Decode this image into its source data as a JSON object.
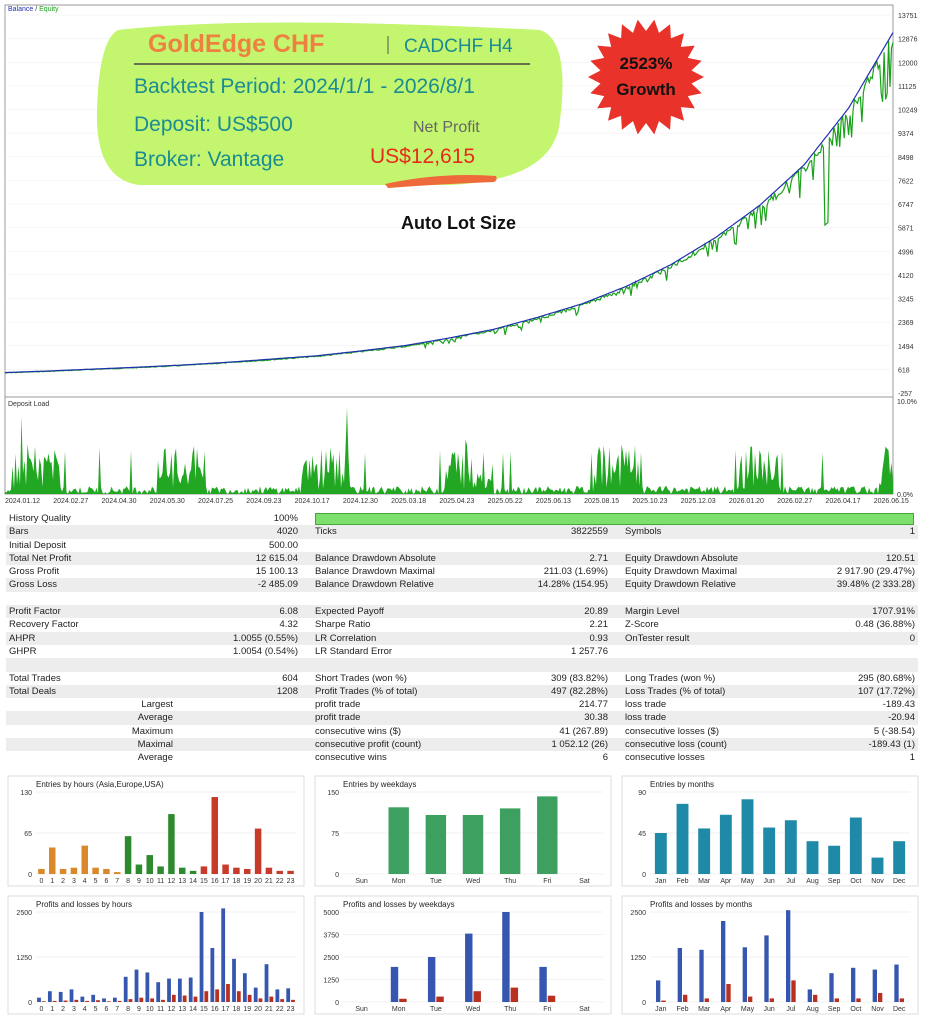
{
  "top_chart": {
    "legend_balance": "Balance",
    "legend_sep": " / ",
    "legend_equity": "Equity",
    "yticks": [
      "13751",
      "12876",
      "12000",
      "11125",
      "10249",
      "9374",
      "8498",
      "7622",
      "6747",
      "5871",
      "4996",
      "4120",
      "3245",
      "2369",
      "1494",
      "618",
      "-257"
    ],
    "ymin": -257,
    "ymax": 13751,
    "balance_curve": [
      [
        0,
        500
      ],
      [
        0.05,
        560
      ],
      [
        0.1,
        630
      ],
      [
        0.15,
        700
      ],
      [
        0.2,
        780
      ],
      [
        0.25,
        880
      ],
      [
        0.3,
        1000
      ],
      [
        0.35,
        1120
      ],
      [
        0.4,
        1300
      ],
      [
        0.45,
        1500
      ],
      [
        0.5,
        1780
      ],
      [
        0.55,
        2100
      ],
      [
        0.6,
        2550
      ],
      [
        0.65,
        3050
      ],
      [
        0.7,
        3700
      ],
      [
        0.75,
        4500
      ],
      [
        0.8,
        5500
      ],
      [
        0.85,
        6700
      ],
      [
        0.9,
        8200
      ],
      [
        0.95,
        10300
      ],
      [
        1,
        13100
      ]
    ],
    "colors": {
      "balance": "#1f2fb0",
      "equity": "#19a119"
    }
  },
  "promo": {
    "title": "GoldEdge CHF",
    "symbol": "CADCHF H4",
    "period": "Backtest Period: 2024/1/1 - 2026/8/1",
    "deposit": "Deposit: US$500",
    "broker": "Broker: Vantage",
    "net_profit_label": "Net Profit",
    "net_profit_value": "US$12,615",
    "growth_pct": "2523%",
    "growth_word": "Growth",
    "lot_label": "Auto Lot Size"
  },
  "load_chart": {
    "title": "Deposit Load",
    "ytop": "10.0%",
    "ybottom": "0.0%",
    "dates": [
      "2024.01.12",
      "2024.02.27",
      "2024.04.30",
      "2024.05.30",
      "2024.07.25",
      "2024.09.23",
      "2024.10.17",
      "2024.12.30",
      "2025.03.18",
      "2025.04.23",
      "2025.05.22",
      "2025.06.13",
      "2025.08.15",
      "2025.10.23",
      "2025.12.03",
      "2026.01.20",
      "2026.02.27",
      "2026.04.17",
      "2026.06.15"
    ]
  },
  "stats": {
    "history_quality_label": "History Quality",
    "history_quality": "100%",
    "rows": [
      [
        "Bars",
        "4020",
        "Ticks",
        "3822559",
        "Symbols",
        "1"
      ],
      [
        "Initial Deposit",
        "500.00",
        "",
        "",
        "",
        ""
      ],
      [
        "Total Net Profit",
        "12 615.04",
        "Balance Drawdown Absolute",
        "2.71",
        "Equity Drawdown Absolute",
        "120.51"
      ],
      [
        "Gross Profit",
        "15 100.13",
        "Balance Drawdown Maximal",
        "211.03 (1.69%)",
        "Equity Drawdown Maximal",
        "2 917.90 (29.47%)"
      ],
      [
        "Gross Loss",
        "-2 485.09",
        "Balance Drawdown Relative",
        "14.28% (154.95)",
        "Equity Drawdown Relative",
        "39.48% (2 333.28)"
      ],
      [
        "",
        "",
        "",
        "",
        "",
        ""
      ],
      [
        "Profit Factor",
        "6.08",
        "Expected Payoff",
        "20.89",
        "Margin Level",
        "1707.91%"
      ],
      [
        "Recovery Factor",
        "4.32",
        "Sharpe Ratio",
        "2.21",
        "Z-Score",
        "0.48 (36.88%)"
      ],
      [
        "AHPR",
        "1.0055 (0.55%)",
        "LR Correlation",
        "0.93",
        "OnTester result",
        "0"
      ],
      [
        "GHPR",
        "1.0054 (0.54%)",
        "LR Standard Error",
        "1 257.76",
        "",
        ""
      ],
      [
        "",
        "",
        "",
        "",
        "",
        ""
      ],
      [
        "Total Trades",
        "604",
        "Short Trades (won %)",
        "309 (83.82%)",
        "Long Trades (won %)",
        "295 (80.68%)"
      ],
      [
        "Total Deals",
        "1208",
        "Profit Trades (% of total)",
        "497 (82.28%)",
        "Loss Trades (% of total)",
        "107 (17.72%)"
      ],
      [
        "Largest",
        "",
        "profit trade",
        "214.77",
        "loss trade",
        "-189.43"
      ],
      [
        "Average",
        "",
        "profit trade",
        "30.38",
        "loss trade",
        "-20.94"
      ],
      [
        "Maximum",
        "",
        "consecutive wins ($)",
        "41 (267.89)",
        "consecutive losses ($)",
        "5 (-38.54)"
      ],
      [
        "Maximal",
        "",
        "consecutive profit (count)",
        "1 052.12 (26)",
        "consecutive loss (count)",
        "-189.43 (1)"
      ],
      [
        "Average",
        "",
        "consecutive wins",
        "6",
        "consecutive losses",
        "1"
      ]
    ]
  },
  "chart_data": [
    {
      "type": "bar",
      "title": "Entries by hours (Asia,Europe,USA)",
      "categories": [
        "0",
        "1",
        "2",
        "3",
        "4",
        "5",
        "6",
        "7",
        "8",
        "9",
        "10",
        "11",
        "12",
        "13",
        "14",
        "15",
        "16",
        "17",
        "18",
        "19",
        "20",
        "21",
        "22",
        "23"
      ],
      "values": [
        8,
        42,
        8,
        10,
        45,
        10,
        8,
        3,
        60,
        15,
        30,
        12,
        95,
        10,
        5,
        12,
        122,
        15,
        10,
        8,
        72,
        10,
        5,
        5
      ],
      "ylim": [
        0,
        130
      ],
      "yticks": [
        "130",
        "65",
        "0"
      ]
    },
    {
      "type": "bar",
      "title": "Entries by weekdays",
      "categories": [
        "Sun",
        "Mon",
        "Tue",
        "Wed",
        "Thu",
        "Fri",
        "Sat"
      ],
      "values": [
        0,
        122,
        108,
        108,
        120,
        142,
        0
      ],
      "ylim": [
        0,
        150
      ],
      "yticks": [
        "150",
        "75",
        "0"
      ]
    },
    {
      "type": "bar",
      "title": "Entries by months",
      "categories": [
        "Jan",
        "Feb",
        "Mar",
        "Apr",
        "May",
        "Jun",
        "Jul",
        "Aug",
        "Sep",
        "Oct",
        "Nov",
        "Dec"
      ],
      "values": [
        45,
        77,
        50,
        65,
        82,
        51,
        59,
        36,
        31,
        62,
        18,
        36
      ],
      "ylim": [
        0,
        90
      ],
      "yticks": [
        "90",
        "45",
        "0"
      ]
    },
    {
      "type": "bar",
      "title": "Profits and losses by hours",
      "categories": [
        "0",
        "1",
        "2",
        "3",
        "4",
        "5",
        "6",
        "7",
        "8",
        "9",
        "10",
        "11",
        "12",
        "13",
        "14",
        "15",
        "16",
        "17",
        "18",
        "19",
        "20",
        "21",
        "22",
        "23"
      ],
      "series": [
        {
          "name": "profit",
          "values": [
            120,
            300,
            280,
            350,
            150,
            200,
            100,
            120,
            700,
            900,
            820,
            550,
            650,
            650,
            680,
            2500,
            1500,
            2600,
            1200,
            800,
            400,
            1050,
            350,
            380
          ]
        },
        {
          "name": "loss",
          "values": [
            20,
            30,
            40,
            60,
            30,
            50,
            20,
            30,
            80,
            120,
            100,
            60,
            200,
            180,
            150,
            300,
            350,
            500,
            300,
            200,
            100,
            150,
            80,
            60
          ]
        }
      ],
      "ylim": [
        0,
        2500
      ],
      "yticks": [
        "2500",
        "1250",
        "0"
      ]
    },
    {
      "type": "bar",
      "title": "Profits and losses by weekdays",
      "categories": [
        "Sun",
        "Mon",
        "Tue",
        "Wed",
        "Thu",
        "Fri",
        "Sat"
      ],
      "series": [
        {
          "name": "profit",
          "values": [
            0,
            1950,
            2500,
            3800,
            5000,
            1950,
            0
          ]
        },
        {
          "name": "loss",
          "values": [
            0,
            180,
            300,
            600,
            800,
            350,
            0
          ]
        }
      ],
      "ylim": [
        0,
        5000
      ],
      "yticks": [
        "5000",
        "3750",
        "2500",
        "1250",
        "0"
      ]
    },
    {
      "type": "bar",
      "title": "Profits and losses by months",
      "categories": [
        "Jan",
        "Feb",
        "Mar",
        "Apr",
        "May",
        "Jun",
        "Jul",
        "Aug",
        "Sep",
        "Oct",
        "Nov",
        "Dec"
      ],
      "series": [
        {
          "name": "profit",
          "values": [
            600,
            1500,
            1450,
            2250,
            1520,
            1850,
            2550,
            350,
            800,
            950,
            900,
            1040
          ]
        },
        {
          "name": "loss",
          "values": [
            40,
            200,
            100,
            500,
            150,
            100,
            600,
            200,
            100,
            100,
            250,
            100
          ]
        }
      ],
      "ylim": [
        0,
        2500
      ],
      "yticks": [
        "2500",
        "1250",
        "0"
      ]
    }
  ]
}
